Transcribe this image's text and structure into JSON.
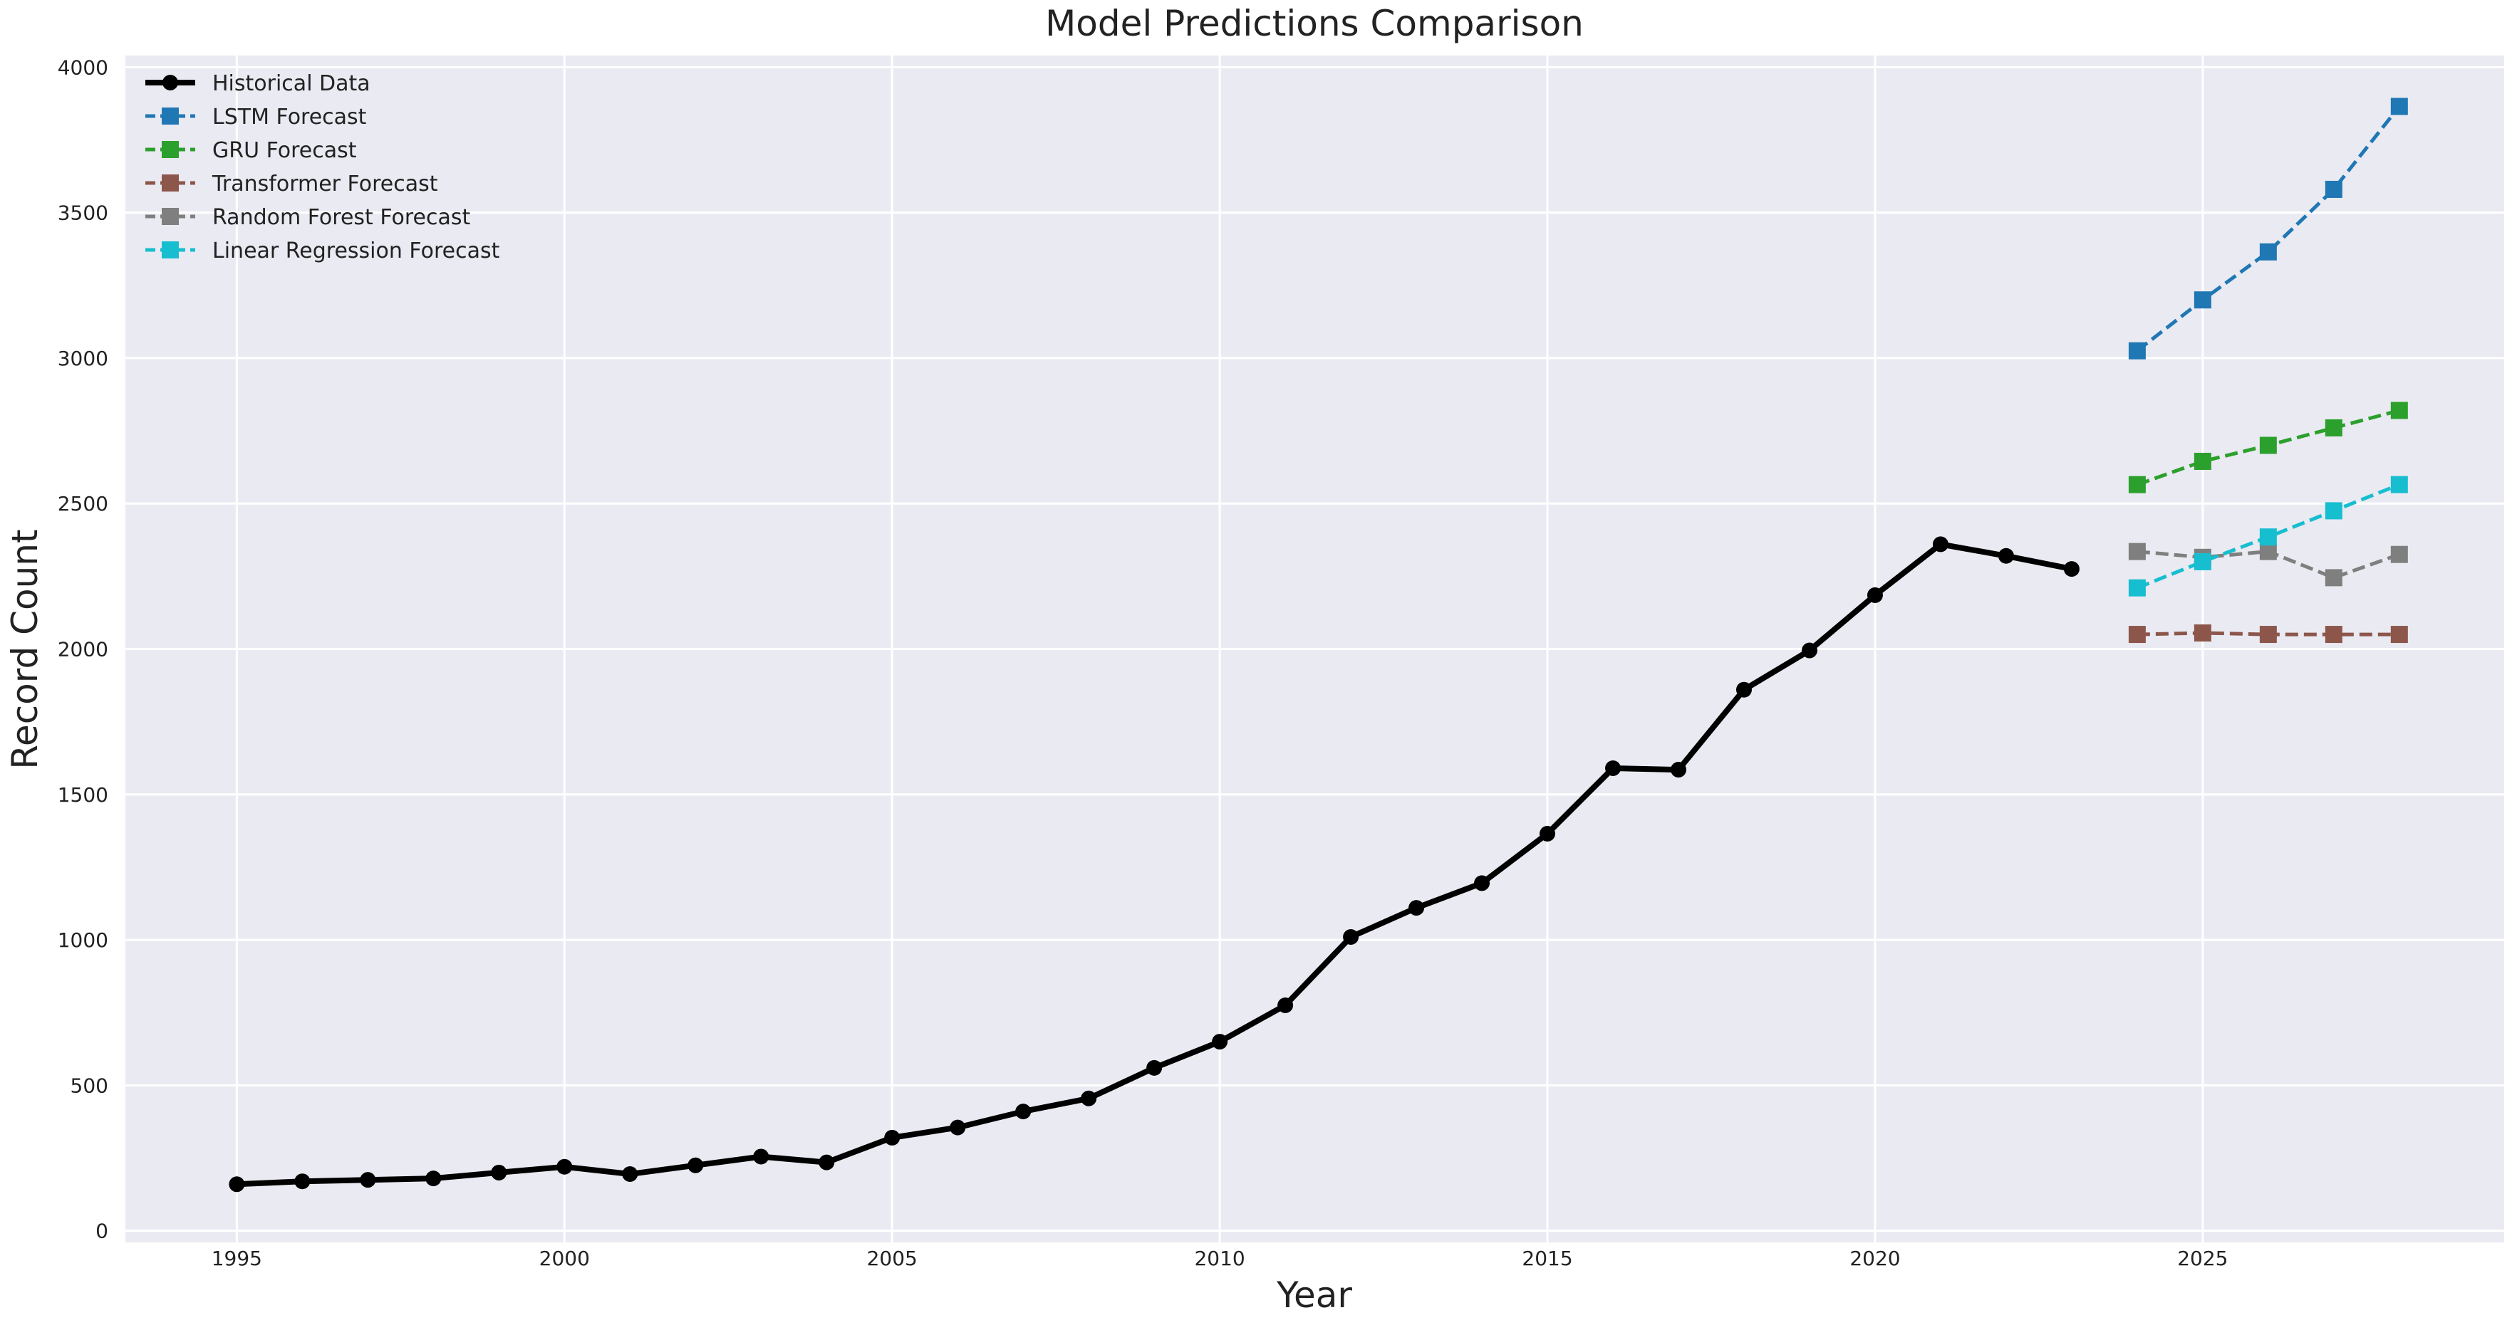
{
  "chart_data": {
    "type": "line",
    "title": "Model Predictions Comparison",
    "xlabel": "Year",
    "ylabel": "Record Count",
    "xlim": [
      1993.3,
      2029.6
    ],
    "ylim": [
      -40,
      4040
    ],
    "xticks": [
      1995,
      2000,
      2005,
      2010,
      2015,
      2020,
      2025
    ],
    "yticks": [
      0,
      500,
      1000,
      1500,
      2000,
      2500,
      3000,
      3500,
      4000
    ],
    "grid": true,
    "legend_position": "top-left",
    "background_color": "#eaeaf2",
    "series": [
      {
        "name": "Historical Data",
        "color": "#000000",
        "line_style": "solid",
        "marker": "circle",
        "x": [
          1995,
          1996,
          1997,
          1998,
          1999,
          2000,
          2001,
          2002,
          2003,
          2004,
          2005,
          2006,
          2007,
          2008,
          2009,
          2010,
          2011,
          2012,
          2013,
          2014,
          2015,
          2016,
          2017,
          2018,
          2019,
          2020,
          2021,
          2022,
          2023
        ],
        "values": [
          160,
          170,
          175,
          180,
          200,
          220,
          195,
          225,
          255,
          235,
          320,
          355,
          410,
          455,
          560,
          650,
          775,
          1010,
          1110,
          1195,
          1365,
          1590,
          1585,
          1860,
          1995,
          2185,
          2360,
          2320,
          2275
        ]
      },
      {
        "name": "LSTM Forecast",
        "color": "#1f77b4",
        "line_style": "dashed",
        "marker": "square",
        "x": [
          2024,
          2025,
          2026,
          2027,
          2028
        ],
        "values": [
          3025,
          3200,
          3365,
          3580,
          3865
        ]
      },
      {
        "name": "GRU Forecast",
        "color": "#2ca02c",
        "line_style": "dashed",
        "marker": "square",
        "x": [
          2024,
          2025,
          2026,
          2027,
          2028
        ],
        "values": [
          2565,
          2645,
          2700,
          2760,
          2820
        ]
      },
      {
        "name": "Transformer Forecast",
        "color": "#8c564b",
        "line_style": "dashed",
        "marker": "square",
        "x": [
          2024,
          2025,
          2026,
          2027,
          2028
        ],
        "values": [
          2050,
          2055,
          2050,
          2050,
          2050
        ]
      },
      {
        "name": "Random Forest Forecast",
        "color": "#7f7f7f",
        "line_style": "dashed",
        "marker": "square",
        "x": [
          2024,
          2025,
          2026,
          2027,
          2028
        ],
        "values": [
          2335,
          2315,
          2335,
          2245,
          2325
        ]
      },
      {
        "name": "Linear Regression Forecast",
        "color": "#17becf",
        "line_style": "dashed",
        "marker": "square",
        "x": [
          2024,
          2025,
          2026,
          2027,
          2028
        ],
        "values": [
          2210,
          2300,
          2385,
          2475,
          2565
        ]
      }
    ]
  }
}
